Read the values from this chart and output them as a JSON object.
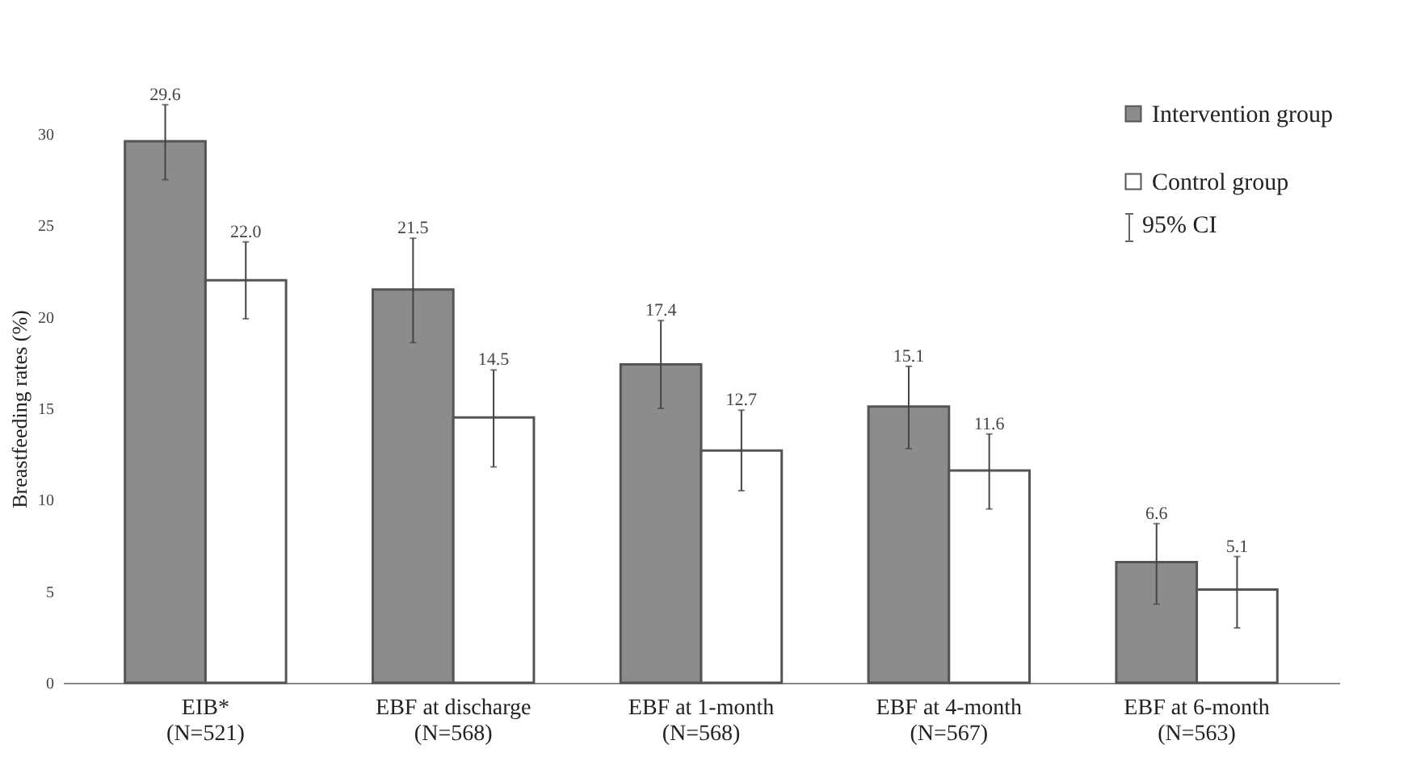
{
  "chart_data": {
    "type": "bar",
    "ylabel": "Breastfeeding rates (%)",
    "categories": [
      "EIB* (N=521)",
      "EBF at discharge (N=568)",
      "EBF at 1-month (N=568)",
      "EBF at 4-month (N=567)",
      "EBF at 6-month (N=563)"
    ],
    "series": [
      {
        "name": "Intervention group",
        "color": "#8c8c8c",
        "values": [
          29.6,
          21.5,
          17.4,
          15.1,
          6.6
        ],
        "value_labels": [
          "29.6",
          "21.5",
          "17.4",
          "15.1",
          "6.6"
        ],
        "errors": [
          [
            27.5,
            31.6
          ],
          [
            18.6,
            24.3
          ],
          [
            15.0,
            19.8
          ],
          [
            12.8,
            17.3
          ],
          [
            4.3,
            8.7
          ]
        ]
      },
      {
        "name": "Control group",
        "color": "#ffffff",
        "values": [
          22.0,
          14.5,
          12.7,
          11.6,
          5.1
        ],
        "value_labels": [
          "22.0",
          "14.5",
          "12.7",
          "11.6",
          "5.1"
        ],
        "errors": [
          [
            19.9,
            24.1
          ],
          [
            11.8,
            17.1
          ],
          [
            10.5,
            14.9
          ],
          [
            9.5,
            13.6
          ],
          [
            3.0,
            6.9
          ]
        ]
      }
    ],
    "ylim": [
      0,
      30
    ],
    "yticks": [
      0,
      5,
      10,
      15,
      20,
      25,
      30
    ],
    "legend": "top right",
    "annotations": [
      "95% CI"
    ]
  }
}
